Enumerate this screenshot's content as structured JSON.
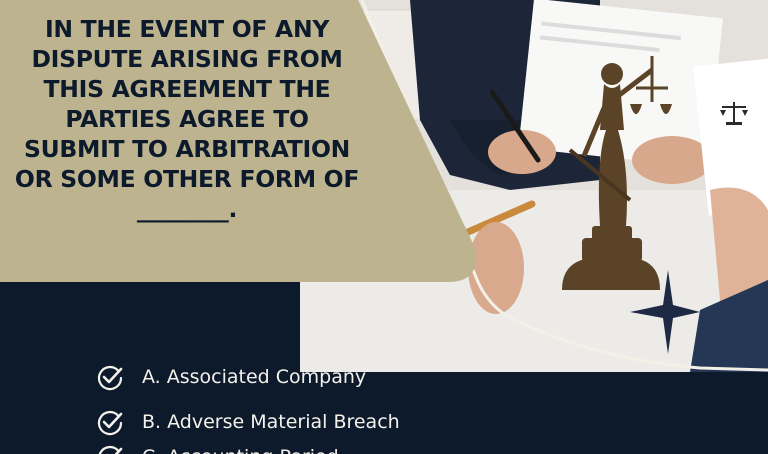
{
  "question": {
    "text": "IN THE EVENT OF ANY DISPUTE ARISING FROM THIS AGREEMENT THE PARTIES AGREE TO SUBMIT TO ARBITRATION OR SOME OTHER FORM OF",
    "blank": "________."
  },
  "options": [
    {
      "label": "A. Associated Company",
      "icon": "check-circle-icon"
    },
    {
      "label": "B. Adverse Material Breach",
      "icon": "check-circle-icon"
    },
    {
      "label": "C. Accounting Period",
      "icon": "check-circle-icon"
    }
  ],
  "colors": {
    "navy": "#0c1a2c",
    "beige": "#bdb48f",
    "text_light": "#f4f1ea",
    "bronze": "#5a4326"
  },
  "photo": {
    "subject": "lady-justice-statue-icon"
  }
}
